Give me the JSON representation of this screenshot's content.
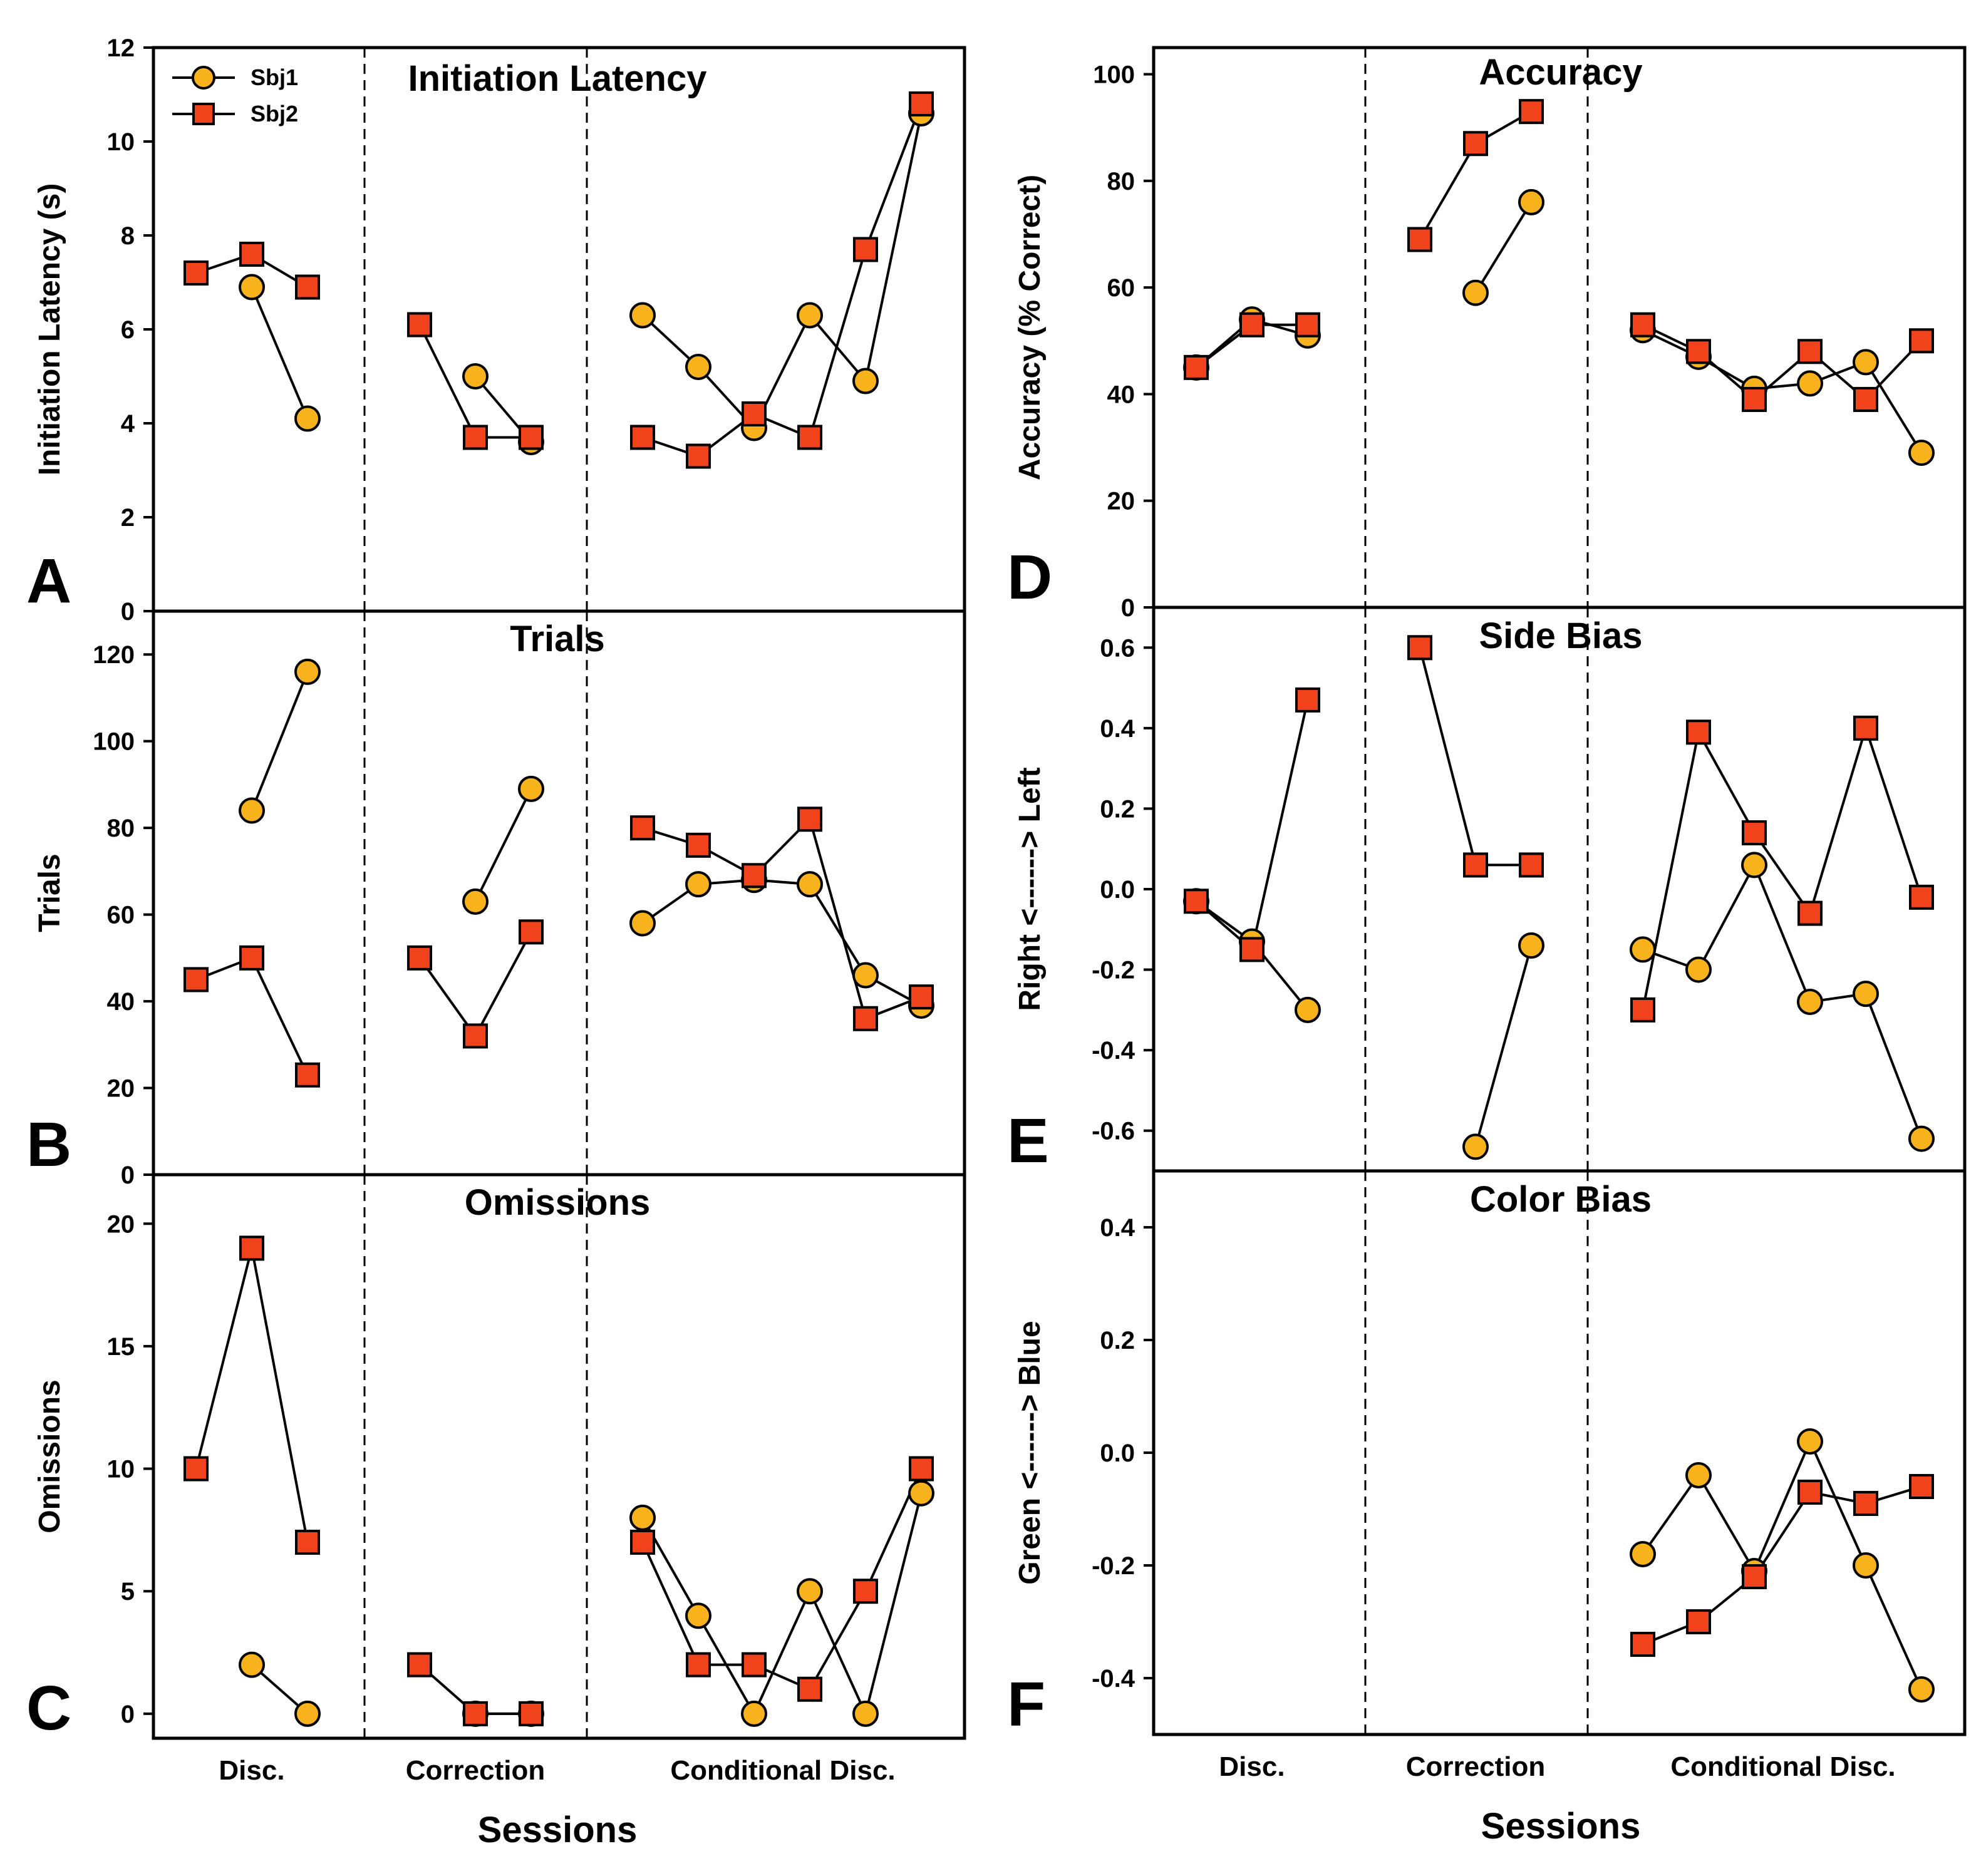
{
  "figure": {
    "subjects": [
      "Sbj1",
      "Sbj2"
    ],
    "phases": [
      "Disc.",
      "Correction",
      "Conditional Disc."
    ],
    "xlabel": "Sessions",
    "colors": {
      "sbj1_fill": "#F7B21C",
      "sbj2_fill": "#F0431B",
      "stroke": "#000000"
    }
  },
  "chart_data": [
    {
      "panel": "A",
      "type": "line",
      "title": "Initiation Latency",
      "ylabel": "Initiation Latency (s)",
      "ylim": [
        0,
        12
      ],
      "yticks": [
        0,
        2,
        4,
        6,
        8,
        10,
        12
      ],
      "ytick_labels": [
        "0",
        "2",
        "4",
        "6",
        "8",
        "10",
        "12"
      ],
      "series": [
        {
          "name": "Sbj1",
          "segments": [
            [
              null,
              6.9,
              4.1
            ],
            [
              null,
              5.0,
              3.6
            ],
            [
              6.3,
              5.2,
              3.9,
              6.3,
              4.9,
              10.6
            ]
          ]
        },
        {
          "name": "Sbj2",
          "segments": [
            [
              7.2,
              7.6,
              6.9
            ],
            [
              6.1,
              3.7,
              3.7
            ],
            [
              3.7,
              3.3,
              4.2,
              3.7,
              7.7,
              10.8
            ]
          ]
        }
      ]
    },
    {
      "panel": "B",
      "type": "line",
      "title": "Trials",
      "ylabel": "Trials",
      "ylim": [
        0,
        130
      ],
      "yticks": [
        0,
        20,
        40,
        60,
        80,
        100,
        120
      ],
      "ytick_labels": [
        "0",
        "20",
        "40",
        "60",
        "80",
        "100",
        "120"
      ],
      "series": [
        {
          "name": "Sbj1",
          "segments": [
            [
              null,
              84,
              116
            ],
            [
              null,
              63,
              89
            ],
            [
              58,
              67,
              68,
              67,
              46,
              39
            ]
          ]
        },
        {
          "name": "Sbj2",
          "segments": [
            [
              45,
              50,
              23
            ],
            [
              50,
              32,
              56
            ],
            [
              80,
              76,
              69,
              82,
              36,
              41
            ]
          ]
        }
      ]
    },
    {
      "panel": "C",
      "type": "line",
      "title": "Omissions",
      "ylabel": "Omissions",
      "ylim": [
        -1,
        22
      ],
      "yticks": [
        0,
        5,
        10,
        15,
        20
      ],
      "ytick_labels": [
        "0",
        "5",
        "10",
        "15",
        "20"
      ],
      "series": [
        {
          "name": "Sbj1",
          "segments": [
            [
              null,
              2,
              0
            ],
            [
              null,
              0,
              0
            ],
            [
              8,
              4,
              0,
              5,
              0,
              9
            ]
          ]
        },
        {
          "name": "Sbj2",
          "segments": [
            [
              10,
              19,
              7
            ],
            [
              2,
              0,
              0
            ],
            [
              7,
              2,
              2,
              1,
              5,
              10
            ]
          ]
        }
      ]
    },
    {
      "panel": "D",
      "type": "line",
      "title": "Accuracy",
      "ylabel": "Accuracy (% Correct)",
      "ylim": [
        0,
        105
      ],
      "yticks": [
        0,
        20,
        40,
        60,
        80,
        100
      ],
      "ytick_labels": [
        "0",
        "20",
        "40",
        "60",
        "80",
        "100"
      ],
      "series": [
        {
          "name": "Sbj1",
          "segments": [
            [
              45,
              54,
              51
            ],
            [
              null,
              59,
              76
            ],
            [
              52,
              47,
              41,
              42,
              46,
              29
            ]
          ]
        },
        {
          "name": "Sbj2",
          "segments": [
            [
              45,
              53,
              53
            ],
            [
              69,
              87,
              93
            ],
            [
              53,
              48,
              39,
              48,
              39,
              50
            ]
          ]
        }
      ]
    },
    {
      "panel": "E",
      "type": "line",
      "title": "Side Bias",
      "ylabel": "Right <------> Left",
      "ylim": [
        -0.7,
        0.7
      ],
      "yticks": [
        -0.6,
        -0.4,
        -0.2,
        0.0,
        0.2,
        0.4,
        0.6
      ],
      "ytick_labels": [
        "-0.6",
        "-0.4",
        "-0.2",
        "0.0",
        "0.2",
        "0.4",
        "0.6"
      ],
      "series": [
        {
          "name": "Sbj1",
          "segments": [
            [
              -0.03,
              -0.13,
              -0.3
            ],
            [
              null,
              -0.64,
              -0.14
            ],
            [
              -0.15,
              -0.2,
              0.06,
              -0.28,
              -0.26,
              -0.62
            ]
          ]
        },
        {
          "name": "Sbj2",
          "segments": [
            [
              -0.03,
              -0.15,
              0.47
            ],
            [
              0.6,
              0.06,
              0.06
            ],
            [
              -0.3,
              0.39,
              0.14,
              -0.06,
              0.4,
              -0.02
            ]
          ]
        }
      ]
    },
    {
      "panel": "F",
      "type": "line",
      "title": "Color Bias",
      "ylabel": "Green <------> Blue",
      "ylim": [
        -0.5,
        0.5
      ],
      "yticks": [
        -0.4,
        -0.2,
        0.0,
        0.2,
        0.4
      ],
      "ytick_labels": [
        "-0.4",
        "-0.2",
        "0.0",
        "0.2",
        "0.4"
      ],
      "series": [
        {
          "name": "Sbj1",
          "segments": [
            [],
            [],
            [
              -0.18,
              -0.04,
              -0.21,
              0.02,
              -0.2,
              -0.42
            ]
          ]
        },
        {
          "name": "Sbj2",
          "segments": [
            [],
            [],
            [
              -0.34,
              -0.3,
              -0.22,
              -0.07,
              -0.09,
              -0.06
            ]
          ]
        }
      ]
    }
  ]
}
